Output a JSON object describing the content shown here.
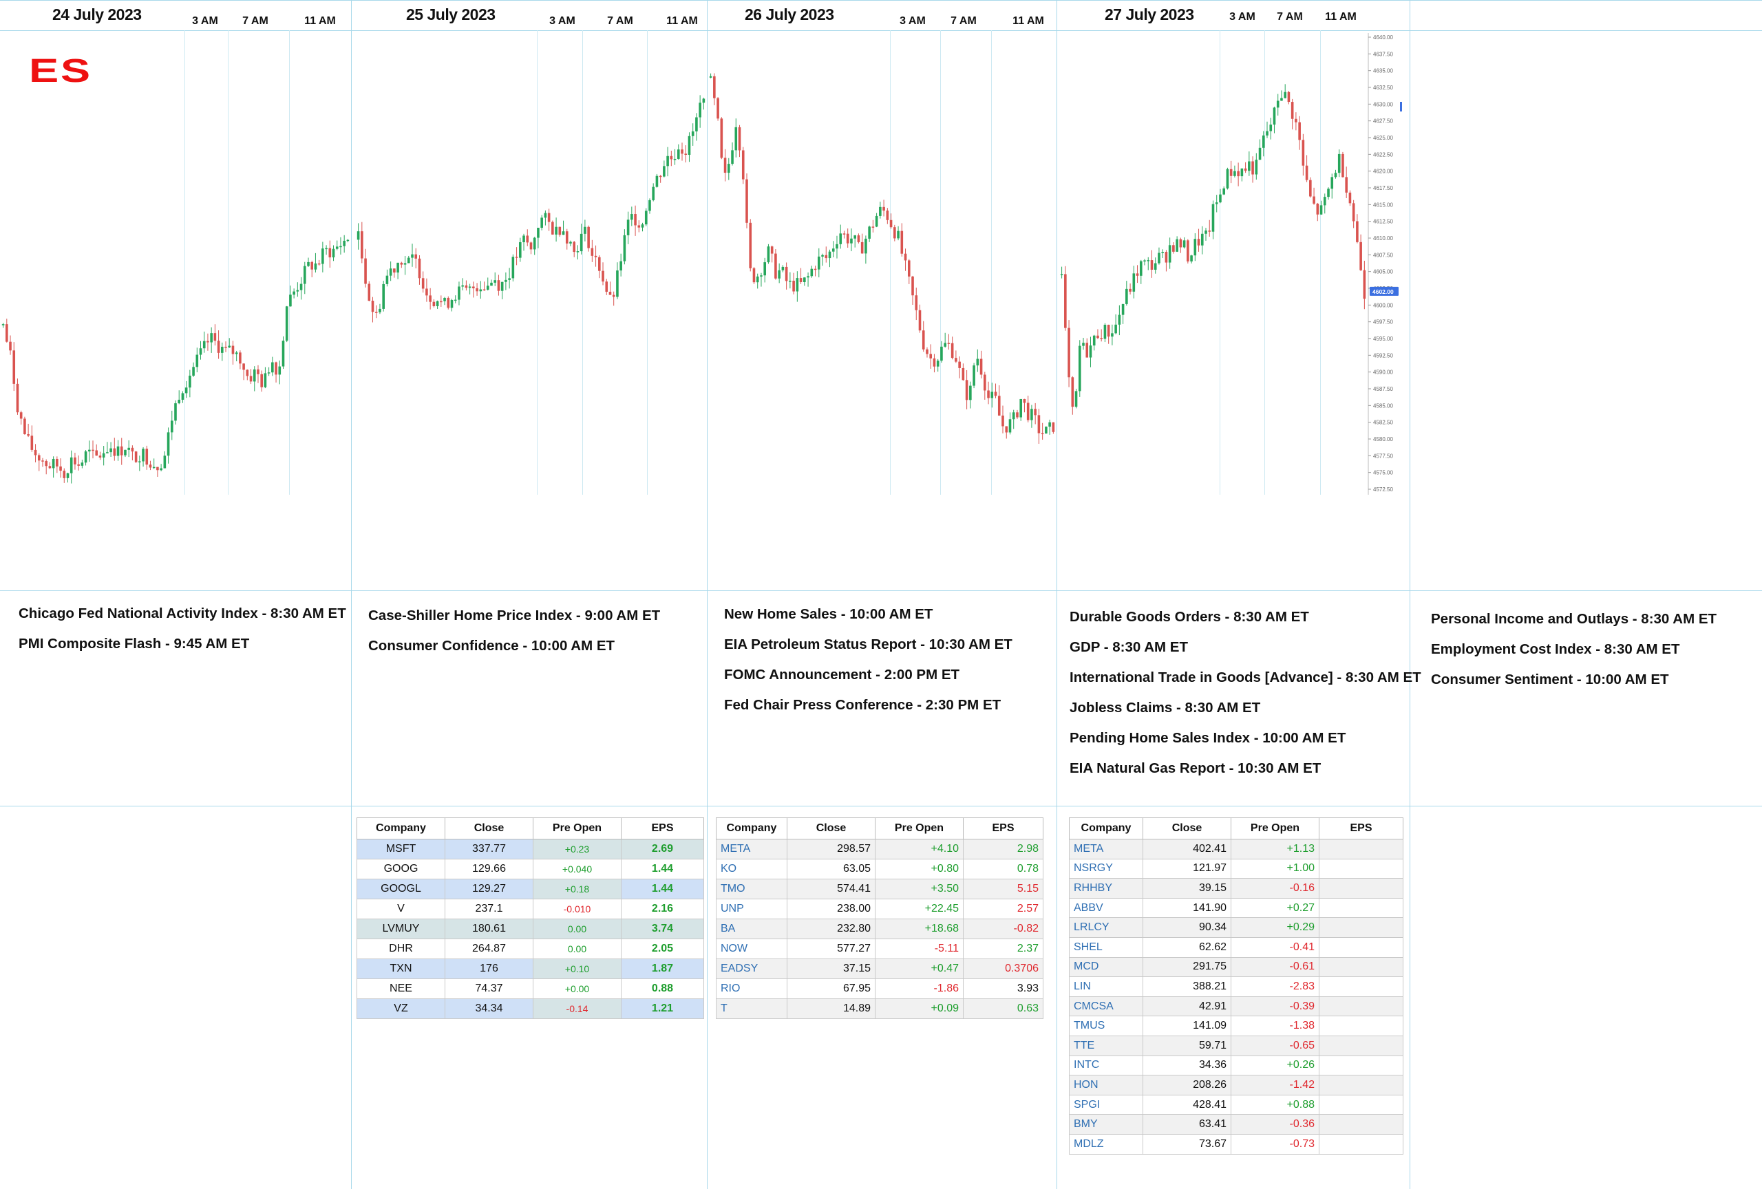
{
  "chart_data": {
    "type": "candlestick",
    "symbol": "ES",
    "ylim": [
      4572.5,
      4640.0
    ],
    "y_ticks": [
      "4640.00",
      "4637.50",
      "4635.00",
      "4632.50",
      "4630.00",
      "4627.50",
      "4625.00",
      "4622.50",
      "4620.00",
      "4617.50",
      "4615.00",
      "4612.50",
      "4610.00",
      "4607.50",
      "4605.00",
      "4602.50",
      "4600.00",
      "4597.50",
      "4595.00",
      "4592.50",
      "4590.00",
      "4587.50",
      "4585.00",
      "4582.50",
      "4580.00",
      "4577.50",
      "4575.00",
      "4572.50"
    ],
    "last_price_label": "4602.00",
    "up_color": "#26a65b",
    "down_color": "#d9534f",
    "days": [
      {
        "date": "24 July 2023",
        "times": [
          "3 AM",
          "7 AM",
          "11 AM"
        ],
        "path": [
          4597,
          4592,
          4584,
          4580,
          4578,
          4577,
          4576,
          4576,
          4575,
          4577,
          4576,
          4578,
          4577,
          4578,
          4579,
          4578,
          4579,
          4577,
          4578,
          4577,
          4576,
          4577,
          4583,
          4587,
          4589,
          4591,
          4593,
          4595,
          4594,
          4593,
          4593,
          4592,
          4589,
          4590,
          4588,
          4592,
          4590,
          4600,
          4602,
          4604,
          4606,
          4606,
          4608,
          4608,
          4609,
          4610
        ]
      },
      {
        "date": "25 July 2023",
        "times": [
          "3 AM",
          "7 AM",
          "11 AM"
        ],
        "path": [
          4610,
          4605,
          4600,
          4598,
          4603,
          4605,
          4606,
          4607,
          4606,
          4607,
          4605,
          4602,
          4601,
          4601,
          4600,
          4601,
          4602,
          4602,
          4602,
          4603,
          4603,
          4603,
          4604,
          4603,
          4604,
          4606,
          4608,
          4610,
          4608,
          4612,
          4613,
          4612,
          4611,
          4612,
          4610,
          4608,
          4610,
          4611,
          4607,
          4606,
          4603,
          4600,
          4604,
          4609,
          4613,
          4613,
          4612,
          4616,
          4618,
          4620,
          4622,
          4622,
          4624,
          4623,
          4625,
          4628,
          4632
        ]
      },
      {
        "date": "26 July 2023",
        "times": [
          "3 AM",
          "7 AM",
          "11 AM"
        ],
        "path": [
          4633,
          4628,
          4618,
          4622,
          4628,
          4620,
          4605,
          4604,
          4606,
          4608,
          4605,
          4605,
          4603,
          4603,
          4603,
          4604,
          4606,
          4607,
          4607,
          4609,
          4611,
          4610,
          4610,
          4608,
          4610,
          4612,
          4614,
          4614,
          4612,
          4610,
          4606,
          4602,
          4598,
          4594,
          4592,
          4592,
          4594,
          4594,
          4592,
          4588,
          4586,
          4593,
          4590,
          4586,
          4586,
          4582,
          4582,
          4583,
          4586,
          4584,
          4583,
          4581,
          4581,
          4582
        ]
      },
      {
        "date": "27 July 2023",
        "times": [
          "3 AM",
          "7 AM",
          "11 AM"
        ],
        "path": [
          4604,
          4590,
          4582,
          4594,
          4593,
          4594,
          4596,
          4596,
          4596,
          4597,
          4600,
          4602,
          4604,
          4606,
          4606,
          4606,
          4607,
          4607,
          4609,
          4609,
          4609,
          4607,
          4609,
          4610,
          4610,
          4614,
          4616,
          4619,
          4620,
          4620,
          4620,
          4621,
          4620,
          4624,
          4626,
          4628,
          4632,
          4631,
          4629,
          4626,
          4620,
          4616,
          4614,
          4614,
          4617,
          4620,
          4622,
          4618,
          4614,
          4608,
          4602
        ]
      }
    ]
  },
  "brand": {
    "symbol_label": "ES"
  },
  "events": [
    [
      "Chicago Fed National Activity Index -  8:30 AM ET",
      "PMI Composite Flash - 9:45 AM ET"
    ],
    [
      "Case-Shiller Home Price Index - 9:00 AM ET",
      "Consumer Confidence - 10:00 AM ET"
    ],
    [
      "New Home Sales - 10:00 AM ET",
      "EIA Petroleum Status Report - 10:30 AM ET",
      "FOMC Announcement - 2:00 PM ET",
      "Fed Chair Press Conference - 2:30 PM ET"
    ],
    [
      "Durable Goods Orders - 8:30 AM ET",
      "GDP - 8:30 AM ET",
      "International Trade in Goods [Advance] - 8:30 AM ET",
      "Jobless Claims - 8:30 AM ET",
      "Pending Home Sales Index - 10:00 AM ET",
      "EIA Natural Gas Report - 10:30 AM ET"
    ],
    [
      "Personal Income and Outlays - 8:30 AM ET",
      "Employment Cost Index - 8:30 AM ET",
      "Consumer Sentiment - 10:00 AM ET"
    ]
  ],
  "tables": {
    "headers": [
      "Company",
      "Close",
      "Pre Open",
      "EPS"
    ],
    "day2": [
      [
        "MSFT",
        "337.77",
        "+0.23",
        "2.69"
      ],
      [
        "GOOG",
        "129.66",
        "+0.040",
        "1.44"
      ],
      [
        "GOOGL",
        "129.27",
        "+0.18",
        "1.44"
      ],
      [
        "V",
        "237.1",
        "-0.010",
        "2.16"
      ],
      [
        "LVMUY",
        "180.61",
        "0.00",
        "3.74"
      ],
      [
        "DHR",
        "264.87",
        "0.00",
        "2.05"
      ],
      [
        "TXN",
        "176",
        "+0.10",
        "1.87"
      ],
      [
        "NEE",
        "74.37",
        "+0.00",
        "0.88"
      ],
      [
        "VZ",
        "34.34",
        "-0.14",
        "1.21"
      ]
    ],
    "day3": [
      [
        "META",
        "298.57",
        "+4.10",
        "2.98"
      ],
      [
        "KO",
        "63.05",
        "+0.80",
        "0.78"
      ],
      [
        "TMO",
        "574.41",
        "+3.50",
        "5.15"
      ],
      [
        "UNP",
        "238.00",
        "+22.45",
        "2.57"
      ],
      [
        "BA",
        "232.80",
        "+18.68",
        "-0.82"
      ],
      [
        "NOW",
        "577.27",
        "-5.11",
        "2.37"
      ],
      [
        "EADSY",
        "37.15",
        "+0.47",
        "0.3706"
      ],
      [
        "RIO",
        "67.95",
        "-1.86",
        "3.93"
      ],
      [
        "T",
        "14.89",
        "+0.09",
        "0.63"
      ]
    ],
    "day4": [
      [
        "META",
        "402.41",
        "+1.13",
        ""
      ],
      [
        "NSRGY",
        "121.97",
        "+1.00",
        ""
      ],
      [
        "RHHBY",
        "39.15",
        "-0.16",
        ""
      ],
      [
        "ABBV",
        "141.90",
        "+0.27",
        ""
      ],
      [
        "LRLCY",
        "90.34",
        "+0.29",
        ""
      ],
      [
        "SHEL",
        "62.62",
        "-0.41",
        ""
      ],
      [
        "MCD",
        "291.75",
        "-0.61",
        ""
      ],
      [
        "LIN",
        "388.21",
        "-2.83",
        ""
      ],
      [
        "CMCSA",
        "42.91",
        "-0.39",
        ""
      ],
      [
        "TMUS",
        "141.09",
        "-1.38",
        ""
      ],
      [
        "TTE",
        "59.71",
        "-0.65",
        ""
      ],
      [
        "INTC",
        "34.36",
        "+0.26",
        ""
      ],
      [
        "HON",
        "208.26",
        "-1.42",
        ""
      ],
      [
        "SPGI",
        "428.41",
        "+0.88",
        ""
      ],
      [
        "BMY",
        "63.41",
        "-0.36",
        ""
      ],
      [
        "MDLZ",
        "73.67",
        "-0.73",
        ""
      ]
    ],
    "colors": {
      "day2_row_bg": [
        "#cfe0f7",
        "#ffffff",
        "#cfe0f7",
        "#ffffff",
        "#d6e4e6",
        "#ffffff",
        "#cfe0f7",
        "#ffffff",
        "#cfe0f7"
      ],
      "day2_eps_bg": [
        "#d6e4e6",
        "#ffffff",
        "#cfe0f7",
        "#ffffff",
        "#d6e4e6",
        "#ffffff",
        "#cfe0f7",
        "#ffffff",
        "#cfe0f7"
      ],
      "day3_eps_colors": [
        "pos",
        "pos",
        "neg",
        "neg",
        "neg",
        "pos",
        "neg",
        "blk",
        "pos"
      ]
    }
  }
}
